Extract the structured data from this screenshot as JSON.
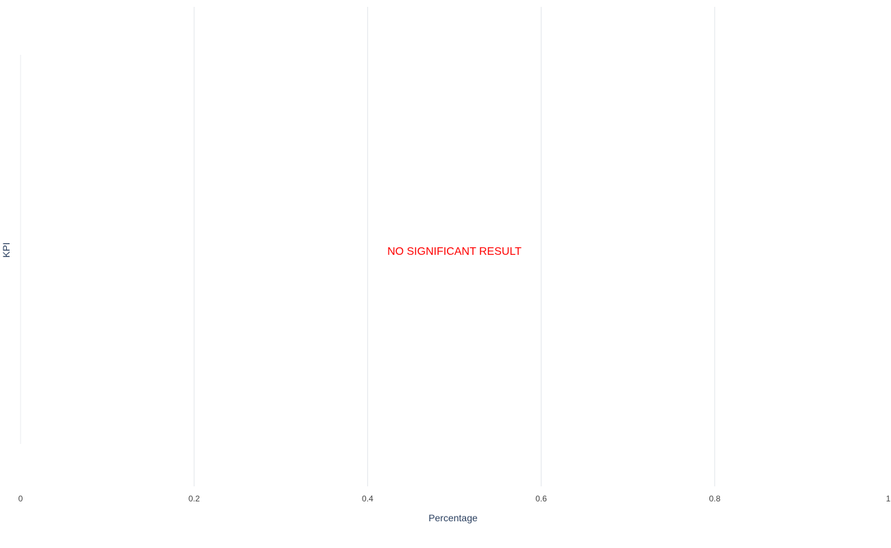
{
  "chart_data": {
    "type": "bar",
    "orientation": "horizontal",
    "title": "",
    "xlabel": "Percentage",
    "ylabel": "KPI",
    "xlim": [
      0,
      1
    ],
    "x_ticks": [
      "0",
      "0.2",
      "0.4",
      "0.6",
      "0.8",
      "1"
    ],
    "x_tick_values": [
      0,
      0.2,
      0.4,
      0.6,
      0.8,
      1
    ],
    "categories": [],
    "values": [],
    "grid": true,
    "annotation": {
      "text": "NO SIGNIFICANT RESULT",
      "x": 0.5,
      "color": "#ff0000"
    },
    "colors": {
      "grid": "#e1e5ea",
      "zeroline": "#e8ebef",
      "tick_text": "#444444",
      "axis_title": "#2a3f5f"
    }
  }
}
